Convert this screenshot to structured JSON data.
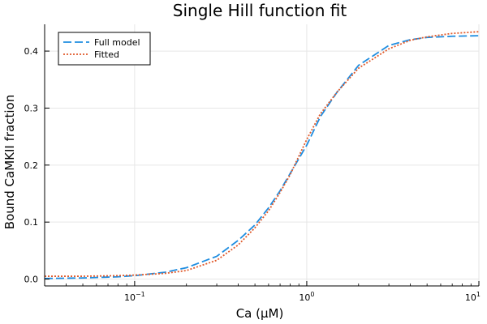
{
  "chart_data": {
    "type": "line",
    "title": "Single Hill function fit",
    "xlabel": "Ca (μM)",
    "ylabel": "Bound CaMKII fraction",
    "xscale": "log",
    "xlim": [
      0.03,
      10
    ],
    "ylim": [
      -0.012,
      0.447
    ],
    "x_ticks": [
      {
        "value": 0.1,
        "base": "10",
        "exp": "−1"
      },
      {
        "value": 1,
        "base": "10",
        "exp": "0"
      },
      {
        "value": 10,
        "base": "10",
        "exp": "1"
      }
    ],
    "y_ticks": [
      {
        "value": 0.0,
        "label": "0.0"
      },
      {
        "value": 0.1,
        "label": "0.1"
      },
      {
        "value": 0.2,
        "label": "0.2"
      },
      {
        "value": 0.3,
        "label": "0.3"
      },
      {
        "value": 0.4,
        "label": "0.4"
      }
    ],
    "grid": true,
    "legend_position": "top-left",
    "series": [
      {
        "name": "Full model",
        "color": "#1f8de0",
        "dash": "long-dash",
        "x": [
          0.03,
          0.05,
          0.08,
          0.1,
          0.15,
          0.2,
          0.3,
          0.4,
          0.5,
          0.6,
          0.7,
          0.8,
          1.0,
          1.2,
          1.5,
          2.0,
          3.0,
          4.0,
          5.0,
          7.0,
          10.0
        ],
        "y": [
          0.001,
          0.002,
          0.004,
          0.006,
          0.012,
          0.02,
          0.04,
          0.068,
          0.095,
          0.125,
          0.155,
          0.185,
          0.235,
          0.285,
          0.328,
          0.375,
          0.41,
          0.42,
          0.424,
          0.426,
          0.427
        ]
      },
      {
        "name": "Fitted",
        "color": "#e05a2b",
        "dash": "dotted",
        "x": [
          0.03,
          0.05,
          0.08,
          0.1,
          0.15,
          0.2,
          0.3,
          0.4,
          0.5,
          0.6,
          0.7,
          0.8,
          1.0,
          1.2,
          1.5,
          2.0,
          3.0,
          4.0,
          5.0,
          7.0,
          10.0
        ],
        "y": [
          0.005,
          0.005,
          0.006,
          0.007,
          0.01,
          0.015,
          0.033,
          0.06,
          0.09,
          0.12,
          0.152,
          0.183,
          0.245,
          0.29,
          0.328,
          0.37,
          0.404,
          0.419,
          0.425,
          0.431,
          0.434
        ]
      }
    ]
  }
}
